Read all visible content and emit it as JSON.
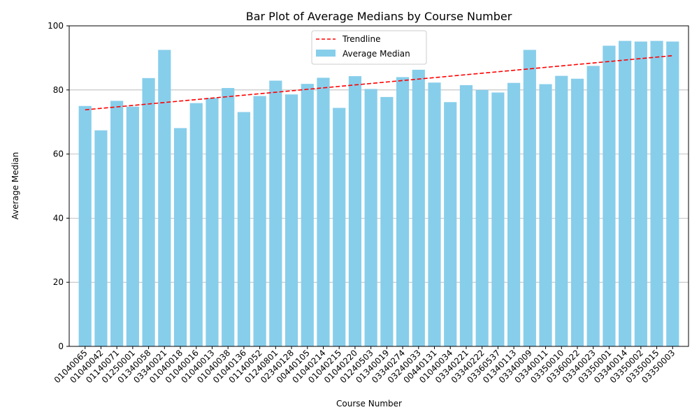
{
  "chart_data": {
    "type": "bar",
    "title": "Bar Plot of Average Medians by Course Number",
    "xlabel": "Course Number",
    "ylabel": "Average Median",
    "ylim": [
      0,
      100
    ],
    "yticks": [
      0,
      20,
      40,
      60,
      80,
      100
    ],
    "grid": "y",
    "legend_position": "upper center",
    "categories": [
      "01040065",
      "01040042",
      "01140071",
      "01250001",
      "01340058",
      "03340021",
      "01040018",
      "01040016",
      "01040013",
      "01040038",
      "01040136",
      "01140052",
      "01240801",
      "02340128",
      "00440105",
      "01040214",
      "01040215",
      "01040220",
      "01240503",
      "01340019",
      "03340274",
      "03240033",
      "00440131",
      "01040034",
      "03340221",
      "03340222",
      "03360537",
      "01340113",
      "03340009",
      "03340011",
      "03350010",
      "03360022",
      "03340023",
      "03350001",
      "03340014",
      "03350002",
      "03350015",
      "03350003"
    ],
    "series": [
      {
        "name": "Average Median",
        "color": "#87ceeb",
        "values": [
          75.0,
          67.4,
          76.6,
          74.8,
          83.7,
          92.5,
          68.1,
          75.9,
          77.5,
          80.6,
          73.1,
          78.1,
          82.9,
          78.6,
          81.9,
          83.8,
          74.4,
          84.3,
          80.3,
          77.8,
          84.0,
          86.3,
          82.3,
          76.2,
          81.5,
          80.0,
          79.2,
          82.2,
          92.5,
          81.8,
          84.4,
          83.5,
          87.5,
          93.8,
          95.3,
          95.1,
          95.3,
          95.1
        ]
      },
      {
        "name": "Trendline",
        "type": "line",
        "style": "dashed",
        "color": "#ff0000",
        "start": [
          0,
          73.8
        ],
        "end": [
          37,
          90.7
        ]
      }
    ]
  }
}
